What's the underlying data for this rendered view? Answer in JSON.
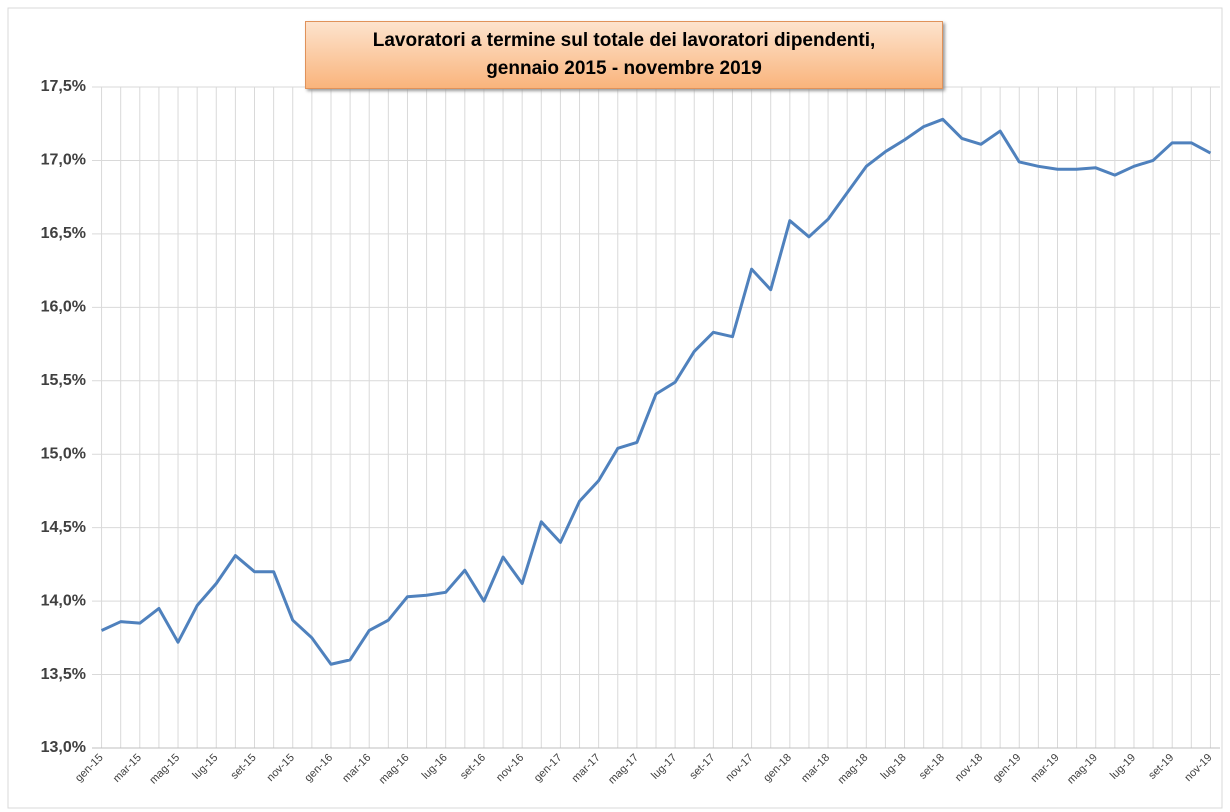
{
  "chart_data": {
    "type": "line",
    "title": "Lavoratori a termine sul totale dei lavoratori dipendenti, gennaio 2015 - novembre 2019",
    "categories": [
      "gen-15",
      null,
      "mar-15",
      null,
      "mag-15",
      null,
      "lug-15",
      null,
      "set-15",
      null,
      "nov-15",
      null,
      "gen-16",
      null,
      "mar-16",
      null,
      "mag-16",
      null,
      "lug-16",
      null,
      "set-16",
      null,
      "nov-16",
      null,
      "gen-17",
      null,
      "mar-17",
      null,
      "mag-17",
      null,
      "lug-17",
      null,
      "set-17",
      null,
      "nov-17",
      null,
      "gen-18",
      null,
      "mar-18",
      null,
      "mag-18",
      null,
      "lug-18",
      null,
      "set-18",
      null,
      "nov-18",
      null,
      "gen-19",
      null,
      "mar-19",
      null,
      "mag-19",
      null,
      "lug-19",
      null,
      "set-19",
      null,
      "nov-19"
    ],
    "series": [
      {
        "color": "#4f81bd",
        "values": [
          13.8,
          13.86,
          13.85,
          13.95,
          13.72,
          13.97,
          14.12,
          14.31,
          14.2,
          14.2,
          13.87,
          13.75,
          13.57,
          13.6,
          13.8,
          13.87,
          14.03,
          14.04,
          14.06,
          14.21,
          14.0,
          14.3,
          14.12,
          14.54,
          14.4,
          14.68,
          14.82,
          15.04,
          15.08,
          15.41,
          15.49,
          15.7,
          15.83,
          15.8,
          16.26,
          16.12,
          16.59,
          16.48,
          16.6,
          16.78,
          16.96,
          17.06,
          17.14,
          17.23,
          17.28,
          17.15,
          17.11,
          17.2,
          16.99,
          16.96,
          16.94,
          16.94,
          16.95,
          16.9,
          16.96,
          17.0,
          17.12,
          17.12,
          17.05
        ]
      }
    ],
    "ylim": [
      13,
      17.5
    ],
    "yticks": [
      {
        "value": 13,
        "label": "13,0%"
      },
      {
        "value": 13.5,
        "label": "13,5%"
      },
      {
        "value": 14,
        "label": "14,0%"
      },
      {
        "value": 14.5,
        "label": "14,5%"
      },
      {
        "value": 15,
        "label": "15,0%"
      },
      {
        "value": 15.5,
        "label": "15,5%"
      },
      {
        "value": 16,
        "label": "16,0%"
      },
      {
        "value": 16.5,
        "label": "16,5%"
      },
      {
        "value": 17,
        "label": "17,0%"
      },
      {
        "value": 17.5,
        "label": "17,5%"
      }
    ],
    "grid": true
  }
}
